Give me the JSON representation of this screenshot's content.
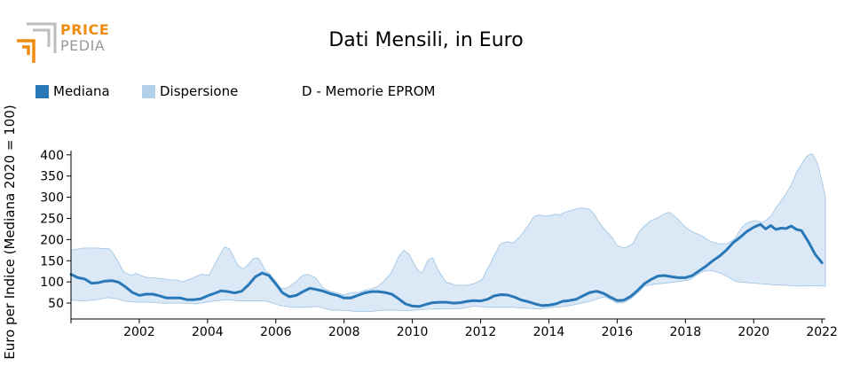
{
  "logo": {
    "line1": "PRICE",
    "line2": "PEDIA",
    "color_primary": "#ef8c12",
    "color_secondary": "#a8a8a8"
  },
  "chart_data": {
    "type": "area",
    "title": "Dati Mensili, in Euro",
    "series_label": "D - Memorie EPROM",
    "xlabel": "",
    "ylabel": "Euro per Indice (Mediana 2020 = 100)",
    "xlim": [
      2000.0,
      2022.1
    ],
    "ylim": [
      25,
      410
    ],
    "x_ticks": [
      2002,
      2004,
      2006,
      2008,
      2010,
      2012,
      2014,
      2016,
      2018,
      2020,
      2022
    ],
    "y_ticks": [
      50,
      100,
      150,
      200,
      250,
      300,
      350,
      400
    ],
    "grid": false,
    "legend_position": "top-left",
    "colors": {
      "median": "#2878b8",
      "dispersion": "#b3d0ea",
      "dispersion_fill": "#dbe8f5",
      "dispersion_edge": "#9cc3e2"
    },
    "series": [
      {
        "name": "Mediana",
        "points": [
          [
            2000.0,
            118
          ],
          [
            2000.2,
            110
          ],
          [
            2000.4,
            107
          ],
          [
            2000.6,
            97
          ],
          [
            2000.8,
            98
          ],
          [
            2001.0,
            102
          ],
          [
            2001.2,
            103
          ],
          [
            2001.4,
            99
          ],
          [
            2001.6,
            88
          ],
          [
            2001.8,
            75
          ],
          [
            2002.0,
            68
          ],
          [
            2002.2,
            71
          ],
          [
            2002.4,
            71
          ],
          [
            2002.6,
            67
          ],
          [
            2002.8,
            62
          ],
          [
            2003.0,
            62
          ],
          [
            2003.2,
            62
          ],
          [
            2003.4,
            58
          ],
          [
            2003.6,
            58
          ],
          [
            2003.8,
            60
          ],
          [
            2004.0,
            67
          ],
          [
            2004.2,
            73
          ],
          [
            2004.4,
            79
          ],
          [
            2004.6,
            77
          ],
          [
            2004.8,
            74
          ],
          [
            2005.0,
            78
          ],
          [
            2005.2,
            93
          ],
          [
            2005.4,
            112
          ],
          [
            2005.6,
            121
          ],
          [
            2005.8,
            115
          ],
          [
            2006.0,
            95
          ],
          [
            2006.2,
            74
          ],
          [
            2006.4,
            65
          ],
          [
            2006.6,
            68
          ],
          [
            2006.8,
            77
          ],
          [
            2007.0,
            85
          ],
          [
            2007.2,
            82
          ],
          [
            2007.4,
            78
          ],
          [
            2007.6,
            72
          ],
          [
            2007.8,
            68
          ],
          [
            2008.0,
            62
          ],
          [
            2008.2,
            62
          ],
          [
            2008.4,
            68
          ],
          [
            2008.6,
            74
          ],
          [
            2008.8,
            77
          ],
          [
            2009.0,
            77
          ],
          [
            2009.2,
            75
          ],
          [
            2009.4,
            71
          ],
          [
            2009.6,
            60
          ],
          [
            2009.8,
            48
          ],
          [
            2010.0,
            43
          ],
          [
            2010.2,
            42
          ],
          [
            2010.4,
            47
          ],
          [
            2010.6,
            51
          ],
          [
            2010.8,
            52
          ],
          [
            2011.0,
            52
          ],
          [
            2011.2,
            50
          ],
          [
            2011.4,
            51
          ],
          [
            2011.6,
            54
          ],
          [
            2011.8,
            56
          ],
          [
            2012.0,
            55
          ],
          [
            2012.2,
            59
          ],
          [
            2012.4,
            67
          ],
          [
            2012.6,
            70
          ],
          [
            2012.8,
            69
          ],
          [
            2013.0,
            64
          ],
          [
            2013.2,
            57
          ],
          [
            2013.4,
            53
          ],
          [
            2013.6,
            48
          ],
          [
            2013.8,
            44
          ],
          [
            2014.0,
            45
          ],
          [
            2014.2,
            48
          ],
          [
            2014.4,
            54
          ],
          [
            2014.6,
            56
          ],
          [
            2014.8,
            59
          ],
          [
            2015.0,
            67
          ],
          [
            2015.2,
            75
          ],
          [
            2015.4,
            78
          ],
          [
            2015.6,
            73
          ],
          [
            2015.8,
            64
          ],
          [
            2016.0,
            56
          ],
          [
            2016.2,
            57
          ],
          [
            2016.4,
            66
          ],
          [
            2016.6,
            80
          ],
          [
            2016.8,
            96
          ],
          [
            2017.0,
            106
          ],
          [
            2017.2,
            114
          ],
          [
            2017.4,
            115
          ],
          [
            2017.6,
            112
          ],
          [
            2017.8,
            110
          ],
          [
            2018.0,
            110
          ],
          [
            2018.2,
            115
          ],
          [
            2018.4,
            126
          ],
          [
            2018.6,
            137
          ],
          [
            2018.8,
            150
          ],
          [
            2019.0,
            161
          ],
          [
            2019.2,
            175
          ],
          [
            2019.4,
            193
          ],
          [
            2019.6,
            205
          ],
          [
            2019.8,
            219
          ],
          [
            2020.0,
            229
          ],
          [
            2020.2,
            236
          ],
          [
            2020.35,
            225
          ],
          [
            2020.5,
            233
          ],
          [
            2020.65,
            224
          ],
          [
            2020.8,
            227
          ],
          [
            2020.95,
            226
          ],
          [
            2021.1,
            232
          ],
          [
            2021.25,
            224
          ],
          [
            2021.4,
            221
          ],
          [
            2021.6,
            195
          ],
          [
            2021.8,
            165
          ],
          [
            2022.0,
            145
          ]
        ]
      }
    ]
  }
}
